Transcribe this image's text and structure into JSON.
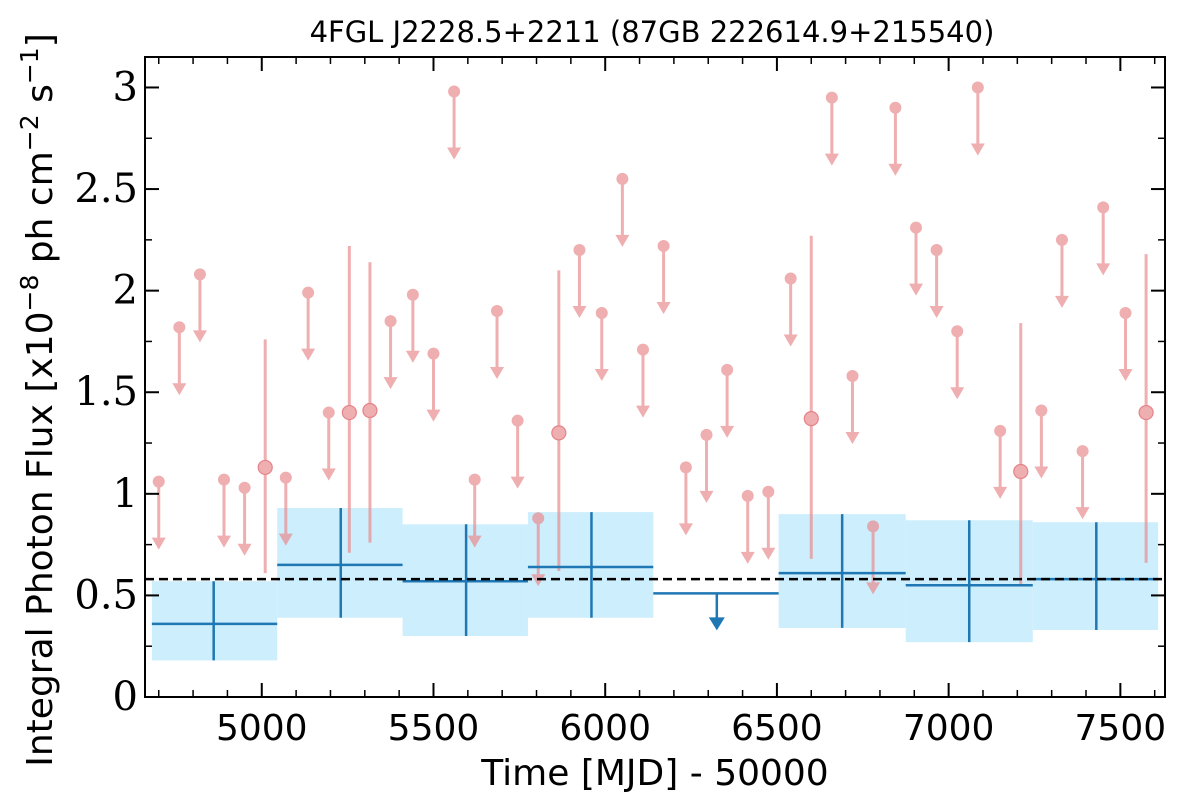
{
  "chart_data": {
    "type": "scatter",
    "title": "4FGL J2228.5+2211 (87GB 222614.9+215540)",
    "xlabel": "Time [MJD] - 50000",
    "ylabel_main": "Integral Photon Flux [x10",
    "ylabel_exp1": "−8",
    "ylabel_mid": " ph cm",
    "ylabel_exp2": "−2",
    "ylabel_mid2": " s",
    "ylabel_exp3": "−1",
    "ylabel_end": "]",
    "xlim": [
      4660,
      7630
    ],
    "ylim": [
      0,
      3.15
    ],
    "xticks": [
      5000,
      5500,
      6000,
      6500,
      7000,
      7500
    ],
    "xtick_labels": [
      "5000",
      "5500",
      "6000",
      "6500",
      "7000",
      "7500"
    ],
    "yticks": [
      0,
      0.5,
      1,
      1.5,
      2,
      2.5,
      3
    ],
    "ytick_labels": [
      "0",
      "0.5",
      "1",
      "1.5",
      "2",
      "2.5",
      "3"
    ],
    "mean_flux": 0.58,
    "colors": {
      "short_bin": "#e8898c",
      "long_bin": "#1f77b4",
      "band": "#cdeefc",
      "mean_line": "#000000"
    },
    "long_bins": [
      {
        "x": 4860,
        "x0": 4680,
        "x1": 5045,
        "y": 0.36,
        "yerr_lo": 0.18,
        "yerr_hi": 0.57,
        "band_lo": 0.18,
        "band_hi": 0.57,
        "upper_limit": false
      },
      {
        "x": 5230,
        "x0": 5045,
        "x1": 5410,
        "y": 0.65,
        "yerr_lo": 0.39,
        "yerr_hi": 0.93,
        "band_lo": 0.39,
        "band_hi": 0.93,
        "upper_limit": false
      },
      {
        "x": 5595,
        "x0": 5410,
        "x1": 5775,
        "y": 0.57,
        "yerr_lo": 0.3,
        "yerr_hi": 0.85,
        "band_lo": 0.3,
        "band_hi": 0.85,
        "upper_limit": false
      },
      {
        "x": 5960,
        "x0": 5775,
        "x1": 6140,
        "y": 0.64,
        "yerr_lo": 0.39,
        "yerr_hi": 0.91,
        "band_lo": 0.39,
        "band_hi": 0.91,
        "upper_limit": false
      },
      {
        "x": 6325,
        "x0": 6140,
        "x1": 6505,
        "y": 0.51,
        "upper_limit": true
      },
      {
        "x": 6690,
        "x0": 6505,
        "x1": 6875,
        "y": 0.61,
        "yerr_lo": 0.34,
        "yerr_hi": 0.9,
        "band_lo": 0.34,
        "band_hi": 0.9,
        "upper_limit": false
      },
      {
        "x": 7060,
        "x0": 6875,
        "x1": 7245,
        "y": 0.55,
        "yerr_lo": 0.27,
        "yerr_hi": 0.87,
        "band_lo": 0.27,
        "band_hi": 0.87,
        "upper_limit": false
      },
      {
        "x": 7430,
        "x0": 7245,
        "x1": 7610,
        "y": 0.58,
        "yerr_lo": 0.33,
        "yerr_hi": 0.86,
        "band_lo": 0.33,
        "band_hi": 0.86,
        "upper_limit": false
      }
    ],
    "short_bins": [
      {
        "x": 4700,
        "y": 1.06,
        "upper_limit": true
      },
      {
        "x": 4760,
        "y": 1.82,
        "upper_limit": true
      },
      {
        "x": 4820,
        "y": 2.08,
        "upper_limit": true
      },
      {
        "x": 4890,
        "y": 1.07,
        "upper_limit": true
      },
      {
        "x": 4950,
        "y": 1.03,
        "upper_limit": true
      },
      {
        "x": 5010,
        "y": 1.13,
        "yerr_lo": 0.61,
        "yerr_hi": 1.76,
        "upper_limit": false
      },
      {
        "x": 5070,
        "y": 1.08,
        "upper_limit": true
      },
      {
        "x": 5135,
        "y": 1.99,
        "upper_limit": true
      },
      {
        "x": 5195,
        "y": 1.4,
        "upper_limit": true
      },
      {
        "x": 5255,
        "y": 1.4,
        "yerr_lo": 0.71,
        "yerr_hi": 2.22,
        "upper_limit": false
      },
      {
        "x": 5315,
        "y": 1.41,
        "yerr_lo": 0.76,
        "yerr_hi": 2.14,
        "upper_limit": false
      },
      {
        "x": 5375,
        "y": 1.85,
        "upper_limit": true
      },
      {
        "x": 5440,
        "y": 1.98,
        "upper_limit": true
      },
      {
        "x": 5500,
        "y": 1.69,
        "upper_limit": true
      },
      {
        "x": 5560,
        "y": 2.98,
        "upper_limit": true
      },
      {
        "x": 5620,
        "y": 1.07,
        "upper_limit": true
      },
      {
        "x": 5685,
        "y": 1.9,
        "upper_limit": true
      },
      {
        "x": 5745,
        "y": 1.36,
        "upper_limit": true
      },
      {
        "x": 5805,
        "y": 0.88,
        "upper_limit": true
      },
      {
        "x": 5865,
        "y": 1.3,
        "yerr_lo": 0.62,
        "yerr_hi": 2.1,
        "upper_limit": false
      },
      {
        "x": 5925,
        "y": 2.2,
        "upper_limit": true
      },
      {
        "x": 5990,
        "y": 1.89,
        "upper_limit": true
      },
      {
        "x": 6050,
        "y": 2.55,
        "upper_limit": true
      },
      {
        "x": 6110,
        "y": 1.71,
        "upper_limit": true
      },
      {
        "x": 6170,
        "y": 2.22,
        "upper_limit": true
      },
      {
        "x": 6235,
        "y": 1.13,
        "upper_limit": true
      },
      {
        "x": 6295,
        "y": 1.29,
        "upper_limit": true
      },
      {
        "x": 6355,
        "y": 1.61,
        "upper_limit": true
      },
      {
        "x": 6415,
        "y": 0.99,
        "upper_limit": true
      },
      {
        "x": 6475,
        "y": 1.01,
        "upper_limit": true
      },
      {
        "x": 6540,
        "y": 2.06,
        "upper_limit": true
      },
      {
        "x": 6600,
        "y": 1.37,
        "yerr_lo": 0.68,
        "yerr_hi": 2.27,
        "upper_limit": false
      },
      {
        "x": 6660,
        "y": 2.95,
        "upper_limit": true
      },
      {
        "x": 6720,
        "y": 1.58,
        "upper_limit": true
      },
      {
        "x": 6780,
        "y": 0.84,
        "upper_limit": true
      },
      {
        "x": 6845,
        "y": 2.9,
        "upper_limit": true
      },
      {
        "x": 6905,
        "y": 2.31,
        "upper_limit": true
      },
      {
        "x": 6965,
        "y": 2.2,
        "upper_limit": true
      },
      {
        "x": 7025,
        "y": 1.8,
        "upper_limit": true
      },
      {
        "x": 7085,
        "y": 3.0,
        "upper_limit": true
      },
      {
        "x": 7150,
        "y": 1.31,
        "upper_limit": true
      },
      {
        "x": 7210,
        "y": 1.11,
        "yerr_lo": 0.55,
        "yerr_hi": 1.84,
        "upper_limit": false
      },
      {
        "x": 7270,
        "y": 1.41,
        "upper_limit": true
      },
      {
        "x": 7330,
        "y": 2.25,
        "upper_limit": true
      },
      {
        "x": 7390,
        "y": 1.21,
        "upper_limit": true
      },
      {
        "x": 7450,
        "y": 2.41,
        "upper_limit": true
      },
      {
        "x": 7515,
        "y": 1.89,
        "upper_limit": true
      },
      {
        "x": 7575,
        "y": 1.4,
        "yerr_lo": 0.66,
        "yerr_hi": 2.18,
        "upper_limit": false
      }
    ]
  }
}
